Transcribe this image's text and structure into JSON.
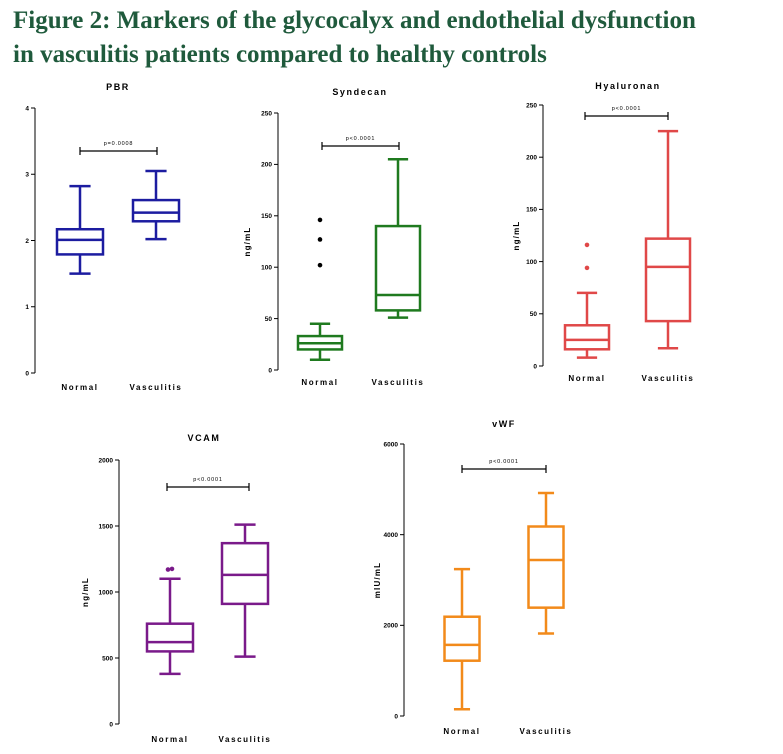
{
  "figure": {
    "title_line1": "Figure 2: Markers of the glycocalyx and endothelial dysfunction",
    "title_line2": "in vasculitis patients compared to healthy controls"
  },
  "chart_data": [
    {
      "type": "box",
      "title": "PBR",
      "ylabel": "",
      "ylim": [
        0,
        4
      ],
      "yticks": [
        "0",
        "1",
        "2",
        "3",
        "4"
      ],
      "color": "#1c1ca0",
      "categories": [
        "Normal",
        "Vasculitis"
      ],
      "boxes": [
        {
          "min": 1.5,
          "q1": 1.79,
          "median": 2.01,
          "q3": 2.17,
          "max": 2.82,
          "outliers": []
        },
        {
          "min": 2.02,
          "q1": 2.29,
          "median": 2.42,
          "q3": 2.61,
          "max": 3.05,
          "outliers": []
        }
      ],
      "annotation": "p=0.0008"
    },
    {
      "type": "box",
      "title": "Syndecan",
      "ylabel": "ng/mL",
      "ylim": [
        0,
        250
      ],
      "yticks": [
        "0",
        "50",
        "100",
        "150",
        "200",
        "250"
      ],
      "color": "#1f7a1f",
      "categories": [
        "Normal",
        "Vasculitis"
      ],
      "boxes": [
        {
          "min": 10,
          "q1": 20,
          "median": 26,
          "q3": 33,
          "max": 45,
          "outliers": [
            102,
            127,
            146
          ]
        },
        {
          "min": 51,
          "q1": 58,
          "median": 73,
          "q3": 140,
          "max": 205,
          "outliers": []
        }
      ],
      "annotation": "p<0.0001"
    },
    {
      "type": "box",
      "title": "Hyaluronan",
      "ylabel": "ng/mL",
      "ylim": [
        0,
        250
      ],
      "yticks": [
        "0",
        "50",
        "100",
        "150",
        "200",
        "250"
      ],
      "color": "#e04848",
      "categories": [
        "Normal",
        "Vasculitis"
      ],
      "boxes": [
        {
          "min": 8,
          "q1": 16,
          "median": 25,
          "q3": 39,
          "max": 70,
          "outliers": [
            94,
            116
          ]
        },
        {
          "min": 17,
          "q1": 43,
          "median": 95,
          "q3": 122,
          "max": 225,
          "outliers": []
        }
      ],
      "annotation": "p<0.0001"
    },
    {
      "type": "box",
      "title": "VCAM",
      "ylabel": "ng/mL",
      "ylim": [
        0,
        2000
      ],
      "yticks": [
        "0",
        "500",
        "1000",
        "1500",
        "2000"
      ],
      "color": "#7a1a8a",
      "categories": [
        "Normal",
        "Vasculitis"
      ],
      "boxes": [
        {
          "min": 380,
          "q1": 550,
          "median": 620,
          "q3": 760,
          "max": 1100,
          "outliers": [
            1170,
            1175
          ]
        },
        {
          "min": 510,
          "q1": 910,
          "median": 1130,
          "q3": 1370,
          "max": 1510,
          "outliers": []
        }
      ],
      "annotation": "p<0.0001"
    },
    {
      "type": "box",
      "title": "vWF",
      "ylabel": "mIU/mL",
      "ylim": [
        0,
        6000
      ],
      "yticks": [
        "0",
        "2000",
        "4000",
        "6000"
      ],
      "color": "#f28a1a",
      "categories": [
        "Normal",
        "Vasculitis"
      ],
      "boxes": [
        {
          "min": 150,
          "q1": 1220,
          "median": 1570,
          "q3": 2190,
          "max": 3240,
          "outliers": []
        },
        {
          "min": 1820,
          "q1": 2390,
          "median": 3440,
          "q3": 4180,
          "max": 4920,
          "outliers": []
        }
      ],
      "annotation": "p<0.0001"
    }
  ]
}
